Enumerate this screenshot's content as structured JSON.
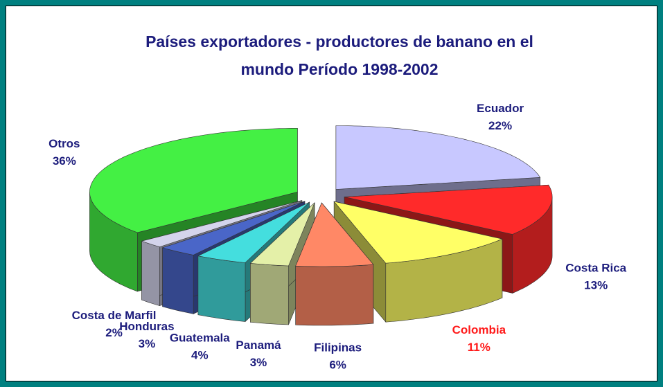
{
  "chart_data": {
    "type": "pie3d",
    "title": "Países exportadores - productores de banano en el mundo Período 1998-2002",
    "categories": [
      "Ecuador",
      "Costa Rica",
      "Colombia",
      "Filipinas",
      "Panamá",
      "Guatemala",
      "Honduras",
      "Costa de Marfil",
      "Otros"
    ],
    "values": [
      22,
      13,
      11,
      6,
      3,
      4,
      3,
      2,
      36
    ],
    "value_labels": [
      "22%",
      "13%",
      "11%",
      "6%",
      "3%",
      "4%",
      "3%",
      "2%",
      "36%"
    ],
    "colors": [
      "#c8c8ff",
      "#ff2a2a",
      "#ffff66",
      "#ff8866",
      "#e4f0a8",
      "#44dede",
      "#4a66c8",
      "#d4d4ec",
      "#44f044"
    ],
    "label_colors": [
      "#1c1c7c",
      "#1c1c7c",
      "#ff1a1a",
      "#1c1c7c",
      "#1c1c7c",
      "#1c1c7c",
      "#1c1c7c",
      "#1c1c7c",
      "#1c1c7c"
    ]
  }
}
